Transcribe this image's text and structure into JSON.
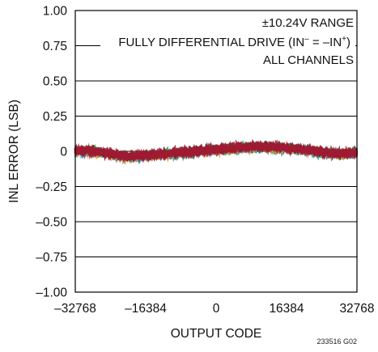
{
  "chart_data": {
    "type": "line",
    "xlabel": "OUTPUT CODE",
    "ylabel": "INL ERROR (LSB)",
    "xlim": [
      -32768,
      32768
    ],
    "ylim": [
      -1.0,
      1.0
    ],
    "x_ticks": [
      "–32768",
      "–16384",
      "0",
      "16384",
      "32768"
    ],
    "y_ticks": [
      "1.00",
      "0.75",
      "0.50",
      "0.25",
      "0",
      "–0.25",
      "–0.50",
      "–0.75",
      "–1.00"
    ],
    "grid": "horizontal",
    "annotations": [
      "±10.24V RANGE",
      "FULLY DIFFERENTIAL DRIVE (IN",
      "–",
      " = –IN",
      "+",
      ")",
      "ALL CHANNELS"
    ],
    "figure_id": "233516 G02",
    "series_colors": [
      "#1f9e89",
      "#f28c1c",
      "#3a6fc4",
      "#d6a10e",
      "#7b3f9e",
      "#111111",
      "#2a8f3c",
      "#9e1b32"
    ],
    "trace": {
      "x": [
        -32768,
        -28672,
        -24576,
        -20480,
        -16384,
        -12288,
        -8192,
        -4096,
        0,
        4096,
        8192,
        12288,
        16384,
        20480,
        24576,
        28672,
        32768
      ],
      "y": [
        0.0,
        0.0,
        -0.02,
        -0.04,
        -0.03,
        -0.02,
        -0.01,
        0.0,
        0.01,
        0.02,
        0.03,
        0.03,
        0.02,
        0.01,
        -0.01,
        -0.02,
        -0.01
      ]
    }
  }
}
